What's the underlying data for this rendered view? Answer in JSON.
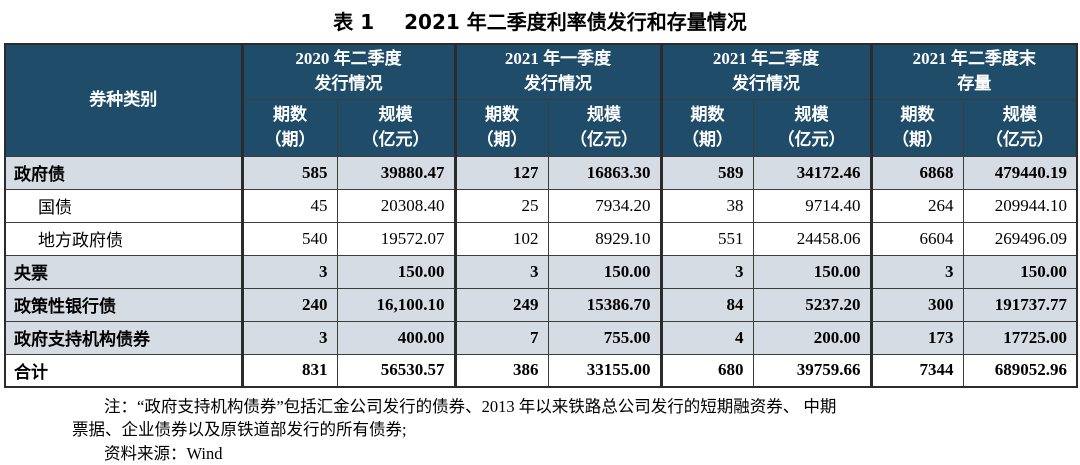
{
  "title": {
    "label_left": "表 1",
    "label_right": "2021 年二季度利率债发行和存量情况"
  },
  "colors": {
    "header_bg": "#1F4C69",
    "header_text": "#FFFFFF",
    "shaded_row_bg": "#D6DCE4",
    "border": "#3D3D3D"
  },
  "table": {
    "corner_header": "券种类别",
    "col_groups": [
      {
        "line1": "2020 年二季度",
        "line2": "发行情况"
      },
      {
        "line1": "2021 年一季度",
        "line2": "发行情况"
      },
      {
        "line1": "2021 年二季度",
        "line2": "发行情况"
      },
      {
        "line1": "2021 年二季度末",
        "line2": "存量"
      }
    ],
    "sub_headers": [
      {
        "line1": "期数",
        "line2": "（期）"
      },
      {
        "line1": "规模",
        "line2": "（亿元）"
      }
    ],
    "rows": [
      {
        "label": "政府债",
        "indent": false,
        "bold": true,
        "shaded": true,
        "values": [
          "585",
          "39880.47",
          "127",
          "16863.30",
          "589",
          "34172.46",
          "6868",
          "479440.19"
        ]
      },
      {
        "label": "国债",
        "indent": true,
        "bold": false,
        "shaded": false,
        "values": [
          "45",
          "20308.40",
          "25",
          "7934.20",
          "38",
          "9714.40",
          "264",
          "209944.10"
        ]
      },
      {
        "label": "地方政府债",
        "indent": true,
        "bold": false,
        "shaded": false,
        "values": [
          "540",
          "19572.07",
          "102",
          "8929.10",
          "551",
          "24458.06",
          "6604",
          "269496.09"
        ]
      },
      {
        "label": "央票",
        "indent": false,
        "bold": true,
        "shaded": true,
        "values": [
          "3",
          "150.00",
          "3",
          "150.00",
          "3",
          "150.00",
          "3",
          "150.00"
        ]
      },
      {
        "label": "政策性银行债",
        "indent": false,
        "bold": true,
        "shaded": true,
        "values": [
          "240",
          "16,100.10",
          "249",
          "15386.70",
          "84",
          "5237.20",
          "300",
          "191737.77"
        ]
      },
      {
        "label": "政府支持机构债券",
        "indent": false,
        "bold": true,
        "shaded": true,
        "values": [
          "3",
          "400.00",
          "7",
          "755.00",
          "4",
          "200.00",
          "173",
          "17725.00"
        ]
      },
      {
        "label": "合计",
        "indent": false,
        "bold": true,
        "shaded": false,
        "values": [
          "831",
          "56530.57",
          "386",
          "33155.00",
          "680",
          "39759.66",
          "7344",
          "689052.96"
        ]
      }
    ]
  },
  "notes": {
    "line1": "注：“政府支持机构债券”包括汇金公司发行的债券、2013 年以来铁路总公司发行的短期融资券、 中期",
    "line2": "票据、企业债券以及原铁道部发行的所有债券;",
    "line3": "资料来源：Wind"
  }
}
